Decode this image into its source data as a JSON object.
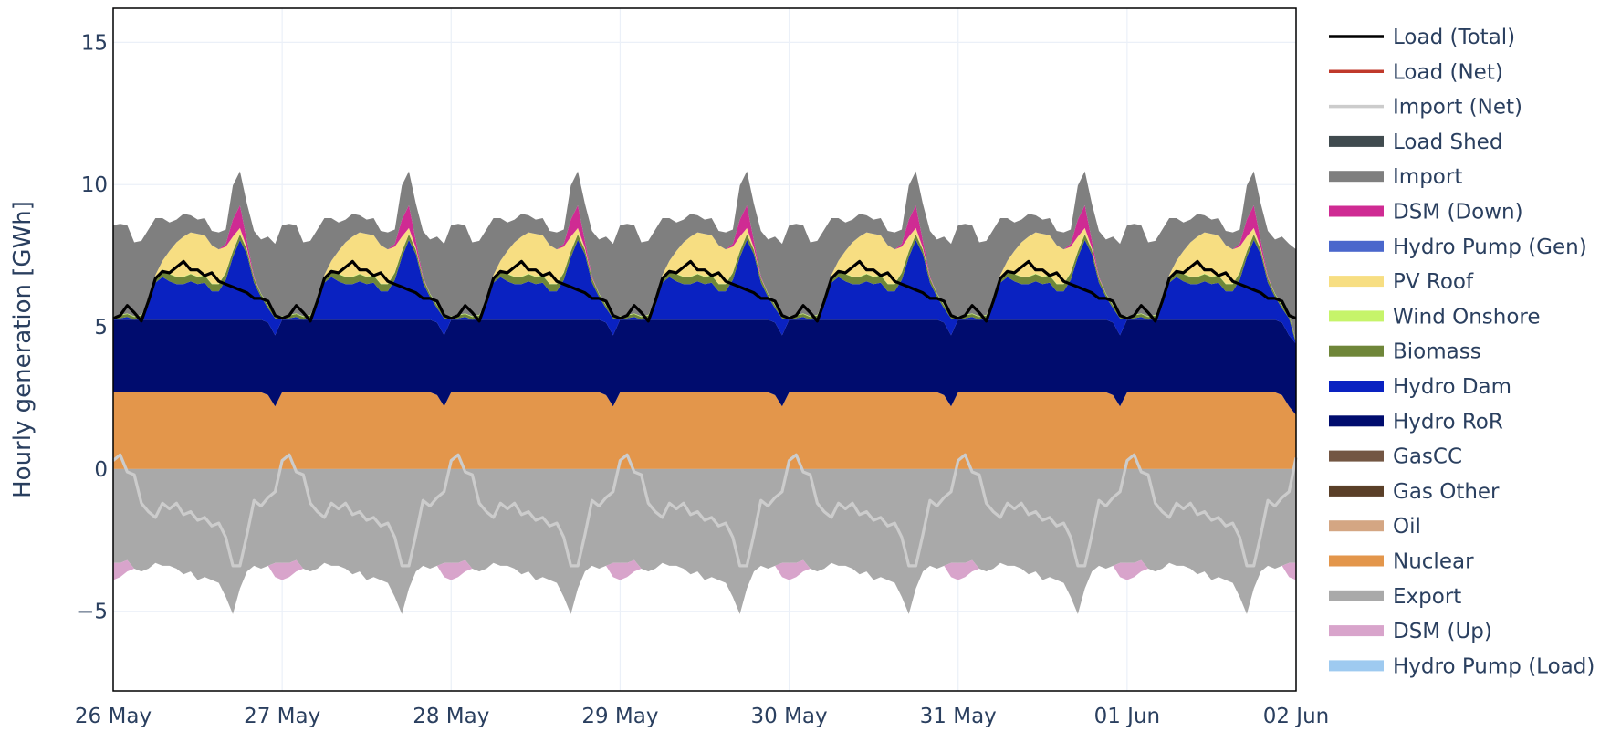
{
  "chart_data": {
    "type": "area",
    "ylabel": "Hourly generation [GWh]",
    "xlabel": "",
    "ylim": [
      -7.8,
      16.2
    ],
    "yticks": [
      -5,
      0,
      5,
      10,
      15
    ],
    "ytick_labels": [
      "−5",
      "0",
      "5",
      "10",
      "15"
    ],
    "xrange_days": [
      0,
      7
    ],
    "xticks": [
      0,
      1,
      2,
      3,
      4,
      5,
      6,
      7
    ],
    "xtick_labels": [
      "26 May",
      "27 May",
      "28 May",
      "29 May",
      "30 May",
      "31 May",
      "01 Jun",
      "02 Jun"
    ],
    "grid": true,
    "legend_position": "right",
    "daily_profile_hours": [
      0,
      1,
      2,
      3,
      4,
      5,
      6,
      7,
      8,
      9,
      10,
      11,
      12,
      13,
      14,
      15,
      16,
      17,
      18,
      19,
      20,
      21,
      22,
      23,
      24
    ],
    "series": [
      {
        "name": "Nuclear",
        "color": "#e3964b",
        "kind": "stack_pos",
        "values": [
          2.7,
          2.7,
          2.7,
          2.7,
          2.7,
          2.7,
          2.7,
          2.7,
          2.7,
          2.7,
          2.7,
          2.7,
          2.7,
          2.7,
          2.7,
          2.7,
          2.7,
          2.7,
          2.7,
          2.7,
          2.7,
          2.7,
          2.6,
          2.2,
          1.9
        ]
      },
      {
        "name": "Hydro RoR",
        "color": "#000c6e",
        "kind": "stack_pos",
        "values": [
          2.55,
          2.55,
          2.55,
          2.55,
          2.55,
          2.55,
          2.55,
          2.55,
          2.55,
          2.55,
          2.55,
          2.55,
          2.55,
          2.55,
          2.55,
          2.55,
          2.55,
          2.55,
          2.55,
          2.55,
          2.55,
          2.55,
          2.55,
          2.5,
          2.5
        ]
      },
      {
        "name": "Hydro Dam",
        "color": "#0a22c1",
        "kind": "stack_pos",
        "values": [
          0.0,
          0.05,
          0.1,
          0.0,
          0.05,
          0.5,
          1.3,
          1.5,
          1.35,
          1.25,
          1.25,
          1.35,
          1.25,
          1.3,
          1.0,
          1.0,
          1.4,
          2.2,
          2.8,
          2.3,
          1.3,
          0.8,
          0.5,
          0.6,
          0.0
        ]
      },
      {
        "name": "Biomass",
        "color": "#6f8639",
        "kind": "stack_pos",
        "values": [
          0.1,
          0.1,
          0.1,
          0.1,
          0.1,
          0.15,
          0.2,
          0.25,
          0.25,
          0.25,
          0.25,
          0.25,
          0.25,
          0.25,
          0.25,
          0.25,
          0.25,
          0.2,
          0.2,
          0.15,
          0.15,
          0.1,
          0.1,
          0.1,
          0.1
        ]
      },
      {
        "name": "Wind Onshore",
        "color": "#c6f46a",
        "kind": "stack_pos",
        "values": [
          0.02,
          0.02,
          0.02,
          0.02,
          0.02,
          0.02,
          0.02,
          0.02,
          0.02,
          0.02,
          0.02,
          0.02,
          0.02,
          0.02,
          0.02,
          0.02,
          0.02,
          0.02,
          0.02,
          0.02,
          0.02,
          0.02,
          0.02,
          0.02,
          0.02
        ]
      },
      {
        "name": "PV Roof",
        "color": "#f7de82",
        "kind": "stack_pos",
        "values": [
          0.0,
          0.0,
          0.0,
          0.0,
          0.0,
          0.0,
          0.05,
          0.3,
          0.8,
          1.2,
          1.4,
          1.45,
          1.5,
          1.4,
          1.35,
          1.2,
          0.9,
          0.5,
          0.2,
          0.05,
          0.0,
          0.0,
          0.0,
          0.0,
          0.0
        ]
      },
      {
        "name": "Hydro Pump (Gen)",
        "color": "#4a67cc",
        "kind": "stack_pos",
        "values": [
          0.0,
          0.0,
          0.0,
          0.0,
          0.0,
          0.0,
          0.0,
          0.0,
          0.0,
          0.0,
          0.0,
          0.0,
          0.0,
          0.0,
          0.0,
          0.0,
          0.0,
          0.0,
          0.0,
          0.0,
          0.0,
          0.0,
          0.0,
          0.0,
          0.0
        ]
      },
      {
        "name": "DSM (Down)",
        "color": "#cf2b93",
        "kind": "stack_pos",
        "values": [
          0.0,
          0.0,
          0.0,
          0.0,
          0.0,
          0.0,
          0.0,
          0.0,
          0.0,
          0.0,
          0.0,
          0.0,
          0.0,
          0.0,
          0.0,
          0.0,
          0.1,
          0.6,
          0.8,
          0.25,
          0.05,
          0.0,
          0.0,
          0.0,
          0.0
        ]
      },
      {
        "name": "Import",
        "color": "#7f7f7f",
        "kind": "stack_pos",
        "values": [
          3.2,
          3.2,
          3.1,
          2.6,
          2.6,
          2.5,
          2.0,
          1.5,
          1.0,
          0.8,
          0.8,
          0.6,
          0.5,
          0.6,
          0.5,
          0.6,
          0.5,
          1.2,
          1.2,
          1.3,
          1.6,
          1.9,
          2.4,
          2.5,
          3.2
        ]
      },
      {
        "name": "Load Shed",
        "color": "#404b4f",
        "kind": "stack_pos",
        "values": [
          0,
          0,
          0,
          0,
          0,
          0,
          0,
          0,
          0,
          0,
          0,
          0,
          0,
          0,
          0,
          0,
          0,
          0,
          0,
          0,
          0,
          0,
          0,
          0,
          0
        ]
      },
      {
        "name": "Export",
        "color": "#a9a9a9",
        "kind": "stack_neg",
        "values": [
          -3.3,
          -3.3,
          -3.2,
          -3.5,
          -3.6,
          -3.5,
          -3.3,
          -3.4,
          -3.4,
          -3.5,
          -3.7,
          -3.6,
          -3.9,
          -3.8,
          -3.9,
          -4.0,
          -4.5,
          -5.1,
          -4.2,
          -3.6,
          -3.4,
          -3.5,
          -3.4,
          -3.3,
          -3.3
        ]
      },
      {
        "name": "DSM (Up)",
        "color": "#d8a4cb",
        "kind": "stack_neg",
        "values": [
          -0.6,
          -0.5,
          -0.4,
          0,
          0,
          0,
          0,
          0,
          0,
          0,
          0,
          0,
          0,
          0,
          0,
          0,
          0,
          0,
          0,
          0,
          0,
          0,
          0,
          -0.5,
          -0.6
        ]
      },
      {
        "name": "Load (Total)",
        "color": "#000000",
        "kind": "line",
        "values": [
          5.3,
          5.4,
          5.75,
          5.5,
          5.2,
          5.9,
          6.7,
          6.95,
          6.9,
          7.1,
          7.3,
          7.0,
          7.0,
          6.8,
          6.9,
          6.6,
          6.5,
          6.4,
          6.3,
          6.2,
          6.0,
          6.0,
          5.9,
          5.4,
          5.3
        ]
      },
      {
        "name": "Import (Net)",
        "color": "#cccccc",
        "kind": "line",
        "values": [
          0.3,
          0.5,
          -0.1,
          -0.2,
          -1.2,
          -1.5,
          -1.7,
          -1.2,
          -1.4,
          -1.2,
          -1.6,
          -1.5,
          -1.8,
          -1.7,
          -2.0,
          -1.9,
          -2.4,
          -3.4,
          -3.4,
          -2.3,
          -1.1,
          -1.3,
          -1.0,
          -0.8,
          0.4
        ]
      }
    ],
    "legend": [
      {
        "label": "Load (Total)",
        "color": "#000000",
        "kind": "line"
      },
      {
        "label": "Load (Net)",
        "color": "#c0392b",
        "kind": "line"
      },
      {
        "label": "Import (Net)",
        "color": "#cccccc",
        "kind": "line"
      },
      {
        "label": "Load Shed",
        "color": "#404b4f",
        "kind": "area"
      },
      {
        "label": "Import",
        "color": "#7f7f7f",
        "kind": "area"
      },
      {
        "label": "DSM (Down)",
        "color": "#cf2b93",
        "kind": "area"
      },
      {
        "label": "Hydro Pump (Gen)",
        "color": "#4a67cc",
        "kind": "area"
      },
      {
        "label": "PV Roof",
        "color": "#f7de82",
        "kind": "area"
      },
      {
        "label": "Wind Onshore",
        "color": "#c6f46a",
        "kind": "area"
      },
      {
        "label": "Biomass",
        "color": "#6f8639",
        "kind": "area"
      },
      {
        "label": "Hydro Dam",
        "color": "#0a22c1",
        "kind": "area"
      },
      {
        "label": "Hydro RoR",
        "color": "#000c6e",
        "kind": "area"
      },
      {
        "label": "GasCC",
        "color": "#735643",
        "kind": "area"
      },
      {
        "label": "Gas Other",
        "color": "#5a3f28",
        "kind": "area"
      },
      {
        "label": "Oil",
        "color": "#d4a683",
        "kind": "area"
      },
      {
        "label": "Nuclear",
        "color": "#e3964b",
        "kind": "area"
      },
      {
        "label": "Export",
        "color": "#a9a9a9",
        "kind": "area"
      },
      {
        "label": "DSM (Up)",
        "color": "#d8a4cb",
        "kind": "area"
      },
      {
        "label": "Hydro Pump (Load)",
        "color": "#9ecaf0",
        "kind": "area"
      }
    ]
  }
}
